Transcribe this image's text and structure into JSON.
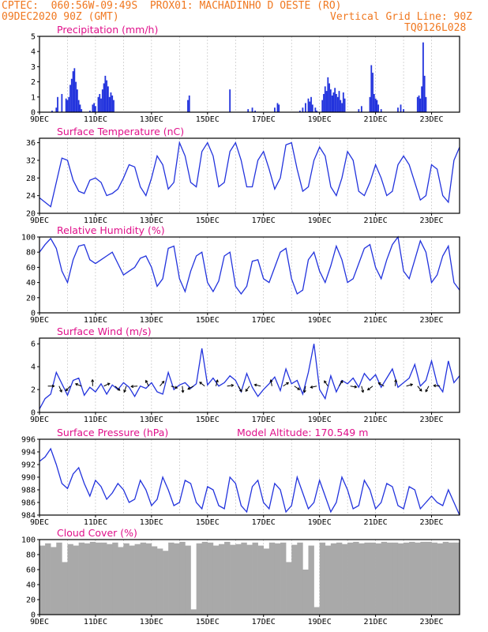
{
  "header": {
    "line1": "CPTEC:  060:56W-09:49S  PROX01: MACHADINHO D OESTE (RO)",
    "line2_left": "09DEC2020 90Z (GMT)",
    "line2_right": "Vertical Grid Line: 90Z",
    "line3_right": "TQ0126L028"
  },
  "colors": {
    "header": "#f07820",
    "title": "#e0108a",
    "series": "#2233dd",
    "cloud": "#a9a9a9",
    "grid": "#bbbbbb"
  },
  "x_axis": {
    "tick_labels": [
      "9DEC",
      "11DEC",
      "13DEC",
      "15DEC",
      "17DEC",
      "19DEC",
      "21DEC",
      "23DEC"
    ],
    "tick_days": [
      9,
      11,
      13,
      15,
      17,
      19,
      21,
      23
    ],
    "range_days": [
      9,
      24
    ],
    "grid": "dashed daily"
  },
  "chart_data": [
    {
      "type": "bar",
      "title": "Precipitation (mm/h)",
      "ylim": [
        0,
        5
      ],
      "yticks": [
        "0",
        "1",
        "2",
        "3",
        "4",
        "5"
      ],
      "x_days": [
        9.45,
        9.6,
        9.65,
        9.8,
        9.95,
        10.0,
        10.05,
        10.1,
        10.15,
        10.2,
        10.25,
        10.3,
        10.35,
        10.4,
        10.45,
        10.5,
        10.8,
        10.9,
        10.95,
        11.0,
        11.1,
        11.15,
        11.2,
        11.25,
        11.3,
        11.35,
        11.4,
        11.45,
        11.5,
        11.55,
        11.6,
        11.65,
        14.3,
        14.35,
        15.8,
        16.45,
        16.6,
        16.7,
        17.4,
        17.5,
        17.55,
        18.3,
        18.4,
        18.5,
        18.6,
        18.65,
        18.7,
        18.75,
        18.85,
        18.9,
        19.1,
        19.15,
        19.2,
        19.25,
        19.3,
        19.35,
        19.4,
        19.45,
        19.5,
        19.55,
        19.6,
        19.65,
        19.7,
        19.75,
        19.8,
        19.85,
        19.9,
        20.4,
        20.5,
        20.8,
        20.85,
        20.9,
        20.95,
        21.0,
        21.05,
        21.1,
        21.2,
        21.8,
        21.9,
        22.0,
        22.5,
        22.55,
        22.6,
        22.65,
        22.7,
        22.75,
        22.8
      ],
      "values": [
        0.1,
        0.3,
        1.0,
        1.2,
        0.9,
        0.8,
        1.0,
        1.8,
        2.2,
        2.7,
        2.9,
        2.0,
        1.5,
        0.8,
        0.5,
        0.2,
        0.1,
        0.5,
        0.6,
        0.4,
        1.0,
        1.2,
        0.9,
        1.5,
        1.9,
        2.4,
        2.1,
        1.7,
        1.0,
        1.3,
        1.1,
        0.8,
        0.8,
        1.1,
        1.5,
        0.2,
        0.3,
        0.1,
        0.3,
        0.6,
        0.5,
        0.1,
        0.3,
        0.6,
        0.9,
        0.7,
        1.0,
        0.5,
        0.3,
        0.1,
        0.8,
        1.2,
        1.7,
        1.4,
        2.3,
        1.9,
        1.5,
        1.1,
        1.3,
        1.6,
        1.2,
        1.0,
        1.4,
        0.8,
        0.6,
        1.3,
        0.9,
        0.2,
        0.4,
        1.0,
        3.1,
        2.6,
        1.2,
        0.9,
        0.8,
        0.5,
        0.2,
        0.3,
        0.5,
        0.2,
        1.0,
        1.1,
        0.9,
        1.7,
        4.6,
        2.4,
        1.0
      ]
    },
    {
      "type": "line",
      "title": "Surface Temperature (nC)",
      "ylim": [
        20,
        37
      ],
      "yticks": [
        "20",
        "24",
        "28",
        "32",
        "36"
      ],
      "x_days": [
        9.0,
        9.2,
        9.4,
        9.6,
        9.8,
        10.0,
        10.2,
        10.4,
        10.6,
        10.8,
        11.0,
        11.2,
        11.4,
        11.6,
        11.8,
        12.0,
        12.2,
        12.4,
        12.6,
        12.8,
        13.0,
        13.2,
        13.4,
        13.6,
        13.8,
        14.0,
        14.2,
        14.4,
        14.6,
        14.8,
        15.0,
        15.2,
        15.4,
        15.6,
        15.8,
        16.0,
        16.2,
        16.4,
        16.6,
        16.8,
        17.0,
        17.2,
        17.4,
        17.6,
        17.8,
        18.0,
        18.2,
        18.4,
        18.6,
        18.8,
        19.0,
        19.2,
        19.4,
        19.6,
        19.8,
        20.0,
        20.2,
        20.4,
        20.6,
        20.8,
        21.0,
        21.2,
        21.4,
        21.6,
        21.8,
        22.0,
        22.2,
        22.4,
        22.6,
        22.8,
        23.0,
        23.2,
        23.4,
        23.6,
        23.8,
        24.0
      ],
      "values": [
        23.5,
        22.5,
        21.5,
        27.0,
        32.5,
        32.0,
        27.5,
        25.0,
        24.5,
        27.5,
        28.0,
        27.0,
        24.0,
        24.5,
        25.5,
        28.0,
        31.0,
        30.5,
        26.0,
        24.0,
        28.0,
        33.0,
        31.0,
        25.5,
        27.0,
        36.0,
        33.0,
        27.0,
        26.0,
        34.0,
        36.0,
        33.0,
        26.0,
        27.0,
        34.0,
        36.0,
        32.0,
        26.0,
        26.0,
        32.0,
        34.0,
        30.0,
        25.5,
        28.0,
        35.5,
        36.0,
        30.0,
        25.0,
        26.0,
        32.0,
        35.0,
        33.0,
        26.0,
        24.0,
        28.0,
        34.0,
        32.0,
        25.0,
        24.0,
        27.0,
        31.0,
        28.0,
        24.0,
        25.0,
        31.0,
        33.0,
        31.0,
        27.0,
        23.0,
        24.0,
        31.0,
        30.0,
        24.0,
        22.5,
        32.0,
        35.0
      ]
    },
    {
      "type": "line",
      "title": "Relative Humidity (%)",
      "ylim": [
        0,
        100
      ],
      "yticks": [
        "0",
        "20",
        "40",
        "60",
        "80",
        "100"
      ],
      "x_days": [
        9.0,
        9.2,
        9.4,
        9.6,
        9.8,
        10.0,
        10.2,
        10.4,
        10.6,
        10.8,
        11.0,
        11.2,
        11.4,
        11.6,
        11.8,
        12.0,
        12.2,
        12.4,
        12.6,
        12.8,
        13.0,
        13.2,
        13.4,
        13.6,
        13.8,
        14.0,
        14.2,
        14.4,
        14.6,
        14.8,
        15.0,
        15.2,
        15.4,
        15.6,
        15.8,
        16.0,
        16.2,
        16.4,
        16.6,
        16.8,
        17.0,
        17.2,
        17.4,
        17.6,
        17.8,
        18.0,
        18.2,
        18.4,
        18.6,
        18.8,
        19.0,
        19.2,
        19.4,
        19.6,
        19.8,
        20.0,
        20.2,
        20.4,
        20.6,
        20.8,
        21.0,
        21.2,
        21.4,
        21.6,
        21.8,
        22.0,
        22.2,
        22.4,
        22.6,
        22.8,
        23.0,
        23.2,
        23.4,
        23.6,
        23.8,
        24.0
      ],
      "values": [
        80,
        90,
        98,
        85,
        55,
        40,
        70,
        88,
        90,
        70,
        65,
        70,
        75,
        80,
        65,
        50,
        55,
        60,
        72,
        75,
        60,
        35,
        45,
        85,
        88,
        45,
        28,
        55,
        75,
        80,
        40,
        28,
        42,
        75,
        80,
        35,
        25,
        35,
        68,
        70,
        45,
        40,
        60,
        80,
        85,
        45,
        25,
        30,
        70,
        80,
        55,
        40,
        62,
        88,
        70,
        40,
        45,
        65,
        85,
        90,
        60,
        45,
        70,
        90,
        100,
        55,
        45,
        70,
        95,
        80,
        40,
        50,
        75,
        88,
        40,
        30
      ]
    },
    {
      "type": "line",
      "title": "Surface Wind (m/s)",
      "ylim": [
        0,
        6.5
      ],
      "yticks": [
        "0",
        "2",
        "4",
        "6"
      ],
      "x_days": [
        9.0,
        9.2,
        9.4,
        9.6,
        9.8,
        10.0,
        10.2,
        10.4,
        10.6,
        10.8,
        11.0,
        11.2,
        11.4,
        11.6,
        11.8,
        12.0,
        12.2,
        12.4,
        12.6,
        12.8,
        13.0,
        13.2,
        13.4,
        13.6,
        13.8,
        14.0,
        14.2,
        14.4,
        14.6,
        14.8,
        15.0,
        15.2,
        15.4,
        15.6,
        15.8,
        16.0,
        16.2,
        16.4,
        16.6,
        16.8,
        17.0,
        17.2,
        17.4,
        17.6,
        17.8,
        18.0,
        18.2,
        18.4,
        18.6,
        18.8,
        19.0,
        19.2,
        19.4,
        19.6,
        19.8,
        20.0,
        20.2,
        20.4,
        20.6,
        20.8,
        21.0,
        21.2,
        21.4,
        21.6,
        21.8,
        22.0,
        22.2,
        22.4,
        22.6,
        22.8,
        23.0,
        23.2,
        23.4,
        23.6,
        23.8,
        24.0
      ],
      "values": [
        0.3,
        1.2,
        1.6,
        3.5,
        2.5,
        1.5,
        2.8,
        3.0,
        1.5,
        2.2,
        1.8,
        2.5,
        1.6,
        2.4,
        2.0,
        2.6,
        2.2,
        1.4,
        2.3,
        2.1,
        2.6,
        1.8,
        1.6,
        3.5,
        2.0,
        2.4,
        2.6,
        2.1,
        2.5,
        5.6,
        2.4,
        3.0,
        2.3,
        2.6,
        3.2,
        2.8,
        1.8,
        3.4,
        2.2,
        1.4,
        2.0,
        2.5,
        3.1,
        1.9,
        3.8,
        2.5,
        2.8,
        1.6,
        3.5,
        6.0,
        2.0,
        1.2,
        3.2,
        1.8,
        2.8,
        2.5,
        3.0,
        2.2,
        3.4,
        2.8,
        3.3,
        2.2,
        3.0,
        3.8,
        2.2,
        2.6,
        3.0,
        4.2,
        2.3,
        2.8,
        4.5,
        2.5,
        1.8,
        4.5,
        2.6,
        3.2
      ]
    },
    {
      "type": "line",
      "title": "Surface Pressure (hPa)",
      "annotation": "Model Altitude: 170.549 m",
      "ylim": [
        984,
        996
      ],
      "yticks": [
        "984",
        "986",
        "988",
        "990",
        "992",
        "994",
        "996"
      ],
      "x_days": [
        9.0,
        9.2,
        9.4,
        9.6,
        9.8,
        10.0,
        10.2,
        10.4,
        10.6,
        10.8,
        11.0,
        11.2,
        11.4,
        11.6,
        11.8,
        12.0,
        12.2,
        12.4,
        12.6,
        12.8,
        13.0,
        13.2,
        13.4,
        13.6,
        13.8,
        14.0,
        14.2,
        14.4,
        14.6,
        14.8,
        15.0,
        15.2,
        15.4,
        15.6,
        15.8,
        16.0,
        16.2,
        16.4,
        16.6,
        16.8,
        17.0,
        17.2,
        17.4,
        17.6,
        17.8,
        18.0,
        18.2,
        18.4,
        18.6,
        18.8,
        19.0,
        19.2,
        19.4,
        19.6,
        19.8,
        20.0,
        20.2,
        20.4,
        20.6,
        20.8,
        21.0,
        21.2,
        21.4,
        21.6,
        21.8,
        22.0,
        22.2,
        22.4,
        22.6,
        22.8,
        23.0,
        23.2,
        23.4,
        23.6,
        23.8,
        24.0
      ],
      "values": [
        992.5,
        993.2,
        994.5,
        992.0,
        989.0,
        988.2,
        990.5,
        991.5,
        989.0,
        987.0,
        989.5,
        988.5,
        986.5,
        987.5,
        989.0,
        988.0,
        986.0,
        986.5,
        989.5,
        988.0,
        985.5,
        986.5,
        990.0,
        988.0,
        985.5,
        986.0,
        989.5,
        989.0,
        986.0,
        985.0,
        988.5,
        988.0,
        985.5,
        985.0,
        990.0,
        989.0,
        985.5,
        984.5,
        988.5,
        989.5,
        986.0,
        985.0,
        989.0,
        988.0,
        984.5,
        985.5,
        990.0,
        987.5,
        985.0,
        986.0,
        989.5,
        987.0,
        984.5,
        986.0,
        990.0,
        988.0,
        985.0,
        985.5,
        989.5,
        988.0,
        985.0,
        986.0,
        989.0,
        988.5,
        985.5,
        985.0,
        988.5,
        988.0,
        985.0,
        986.0,
        987.0,
        986.0,
        985.5,
        988.0,
        986.0,
        984.0
      ]
    },
    {
      "type": "bar",
      "title": "Cloud Cover (%)",
      "ylim": [
        0,
        100
      ],
      "yticks": [
        "0",
        "20",
        "40",
        "60",
        "80",
        "100"
      ],
      "x_days": [
        9.0,
        9.2,
        9.4,
        9.6,
        9.8,
        10.0,
        10.2,
        10.4,
        10.6,
        10.8,
        11.0,
        11.2,
        11.4,
        11.6,
        11.8,
        12.0,
        12.2,
        12.4,
        12.6,
        12.8,
        13.0,
        13.2,
        13.4,
        13.6,
        13.8,
        14.0,
        14.2,
        14.4,
        14.6,
        14.8,
        15.0,
        15.2,
        15.4,
        15.6,
        15.8,
        16.0,
        16.2,
        16.4,
        16.6,
        16.8,
        17.0,
        17.2,
        17.4,
        17.6,
        17.8,
        18.0,
        18.2,
        18.4,
        18.6,
        18.8,
        19.0,
        19.2,
        19.4,
        19.6,
        19.8,
        20.0,
        20.2,
        20.4,
        20.6,
        20.8,
        21.0,
        21.2,
        21.4,
        21.6,
        21.8,
        22.0,
        22.2,
        22.4,
        22.6,
        22.8,
        23.0,
        23.2,
        23.4,
        23.6,
        23.8
      ],
      "values": [
        92,
        95,
        90,
        96,
        70,
        94,
        92,
        96,
        95,
        97,
        96,
        96,
        94,
        96,
        90,
        95,
        92,
        94,
        96,
        95,
        91,
        88,
        85,
        96,
        95,
        97,
        92,
        7,
        95,
        97,
        96,
        92,
        94,
        97,
        93,
        94,
        96,
        93,
        96,
        92,
        88,
        96,
        95,
        96,
        70,
        93,
        96,
        60,
        92,
        10,
        96,
        92,
        95,
        96,
        94,
        96,
        97,
        95,
        96,
        96,
        95,
        97,
        96,
        96,
        95,
        96,
        97,
        96,
        97,
        97,
        96,
        95,
        97,
        96,
        96
      ]
    }
  ]
}
